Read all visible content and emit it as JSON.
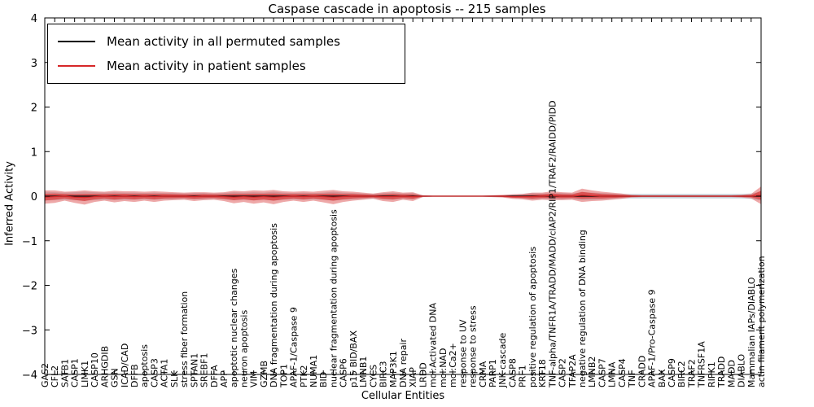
{
  "chart_data": {
    "type": "line",
    "title": "Caspase cascade in apoptosis -- 215 samples",
    "xlabel": "Cellular Entities",
    "ylabel": "Inferred Activity",
    "ylim": [
      -4,
      4
    ],
    "yticks": [
      -4,
      -3,
      -2,
      -1,
      0,
      1,
      2,
      3,
      4
    ],
    "grid": false,
    "legend_position": "upper left",
    "categories": [
      "GAS2",
      "CFL2",
      "SATB1",
      "CASP1",
      "LIMK1",
      "CASP10",
      "ARHGDIB",
      "GSN",
      "ICAD/CAD",
      "DFFB",
      "apoptosis",
      "CASP3",
      "ACTA1",
      "SLK",
      "stress fiber formation",
      "SPTAN1",
      "SREBF1",
      "DFFA",
      "APP",
      "apoptotic nuclear changes",
      "neuron apoptosis",
      "VIM",
      "GZMB",
      "DNA fragmentation during apoptosis",
      "TOP1",
      "APAF-1/Caspase 9",
      "PTK2",
      "NUMA1",
      "BID",
      "nuclear fragmentation during apoptosis",
      "CASP6",
      "p15 BID/BAX",
      "LMNB1",
      "CYCS",
      "BIRC3",
      "MAP3K1",
      "DNA repair",
      "XIAP",
      "LRDD",
      "mol:Activated DNA",
      "mol:NAD",
      "mol:Ca2+",
      "response to UV",
      "response to stress",
      "CRMA",
      "PARP1",
      "JNK cascade",
      "CASP8",
      "PRF1",
      "positive regulation of apoptosis",
      "KRT18",
      "TNF-alpha/TNFR1A/TRADD/MADD/cIAP2/RIP1/TRAF2/RAIDD/PIDD",
      "CASP2",
      "TFAP2A",
      "negative regulation of DNA binding",
      "LMNB2",
      "CASP7",
      "LMNA",
      "CASP4",
      "TNF",
      "CRADD",
      "APAF-1/Pro-Caspase 9",
      "BAX",
      "CASP9",
      "BIRC2",
      "TRAF2",
      "TNFRSF1A",
      "RIPK1",
      "TRADD",
      "MADD",
      "DIABLO",
      "Mammalian IAPs/DIABLO",
      "actin filament polymerization"
    ],
    "series": [
      {
        "name": "Mean activity in all permuted samples",
        "color": "#000000",
        "band_color": "#b9c7d2",
        "mean": [
          0,
          0,
          0,
          0,
          0,
          0,
          0,
          0,
          0,
          0,
          0,
          0,
          0,
          0,
          0,
          0,
          0,
          0,
          0,
          0,
          0,
          0,
          0,
          0,
          0,
          0,
          0,
          0,
          0,
          0,
          0,
          0,
          0,
          0,
          0,
          0,
          0,
          0,
          0,
          0,
          0,
          0,
          0,
          0,
          0,
          0,
          0,
          0,
          0,
          0,
          0,
          0,
          0,
          0,
          0,
          0,
          0,
          0,
          0,
          0,
          0,
          0,
          0,
          0,
          0,
          0,
          0,
          0,
          0,
          0,
          0,
          0,
          0
        ],
        "band": [
          0.1,
          0.09,
          0.08,
          0.09,
          0.1,
          0.09,
          0.08,
          0.09,
          0.08,
          0.08,
          0.07,
          0.08,
          0.07,
          0.07,
          0.06,
          0.07,
          0.07,
          0.06,
          0.07,
          0.09,
          0.08,
          0.09,
          0.08,
          0.1,
          0.08,
          0.07,
          0.08,
          0.07,
          0.08,
          0.1,
          0.08,
          0.07,
          0.06,
          0.05,
          0.07,
          0.08,
          0.06,
          0.07,
          0.02,
          0.01,
          0.01,
          0.01,
          0.01,
          0.01,
          0.01,
          0.02,
          0.02,
          0.04,
          0.05,
          0.07,
          0.06,
          0.07,
          0.07,
          0.06,
          0.09,
          0.08,
          0.07,
          0.06,
          0.05,
          0.05,
          0.05,
          0.05,
          0.05,
          0.05,
          0.05,
          0.05,
          0.05,
          0.05,
          0.05,
          0.05,
          0.05,
          0.06,
          0.1
        ]
      },
      {
        "name": "Mean activity in patient samples",
        "color": "#d62728",
        "band_color": "#e06060",
        "mean": [
          -0.02,
          -0.01,
          0.0,
          -0.02,
          -0.03,
          -0.01,
          0.0,
          -0.01,
          0.0,
          -0.01,
          0.0,
          -0.01,
          0.0,
          0.0,
          0.0,
          -0.01,
          0.0,
          0.0,
          -0.01,
          -0.02,
          -0.01,
          -0.02,
          -0.01,
          -0.02,
          -0.01,
          0.0,
          -0.01,
          0.0,
          -0.01,
          -0.02,
          -0.01,
          0.0,
          0.0,
          0.0,
          -0.01,
          -0.01,
          0.0,
          -0.01,
          0.0,
          0.0,
          0.0,
          0.0,
          0.0,
          0.0,
          0.0,
          0.0,
          0.0,
          -0.01,
          -0.01,
          -0.01,
          0.0,
          0.01,
          0.0,
          0.0,
          0.02,
          0.01,
          0.0,
          0.0,
          0.0,
          0.0,
          0.0,
          0.0,
          0.0,
          0.0,
          0.0,
          0.0,
          0.0,
          0.0,
          0.0,
          0.0,
          0.0,
          0.0,
          0.02
        ],
        "band": [
          0.15,
          0.14,
          0.1,
          0.13,
          0.16,
          0.12,
          0.1,
          0.13,
          0.11,
          0.12,
          0.1,
          0.12,
          0.1,
          0.09,
          0.08,
          0.1,
          0.09,
          0.08,
          0.1,
          0.14,
          0.12,
          0.15,
          0.13,
          0.16,
          0.12,
          0.1,
          0.12,
          0.1,
          0.13,
          0.16,
          0.12,
          0.1,
          0.08,
          0.06,
          0.1,
          0.12,
          0.08,
          0.1,
          0.02,
          0.01,
          0.01,
          0.01,
          0.01,
          0.01,
          0.01,
          0.02,
          0.03,
          0.05,
          0.06,
          0.09,
          0.08,
          0.1,
          0.09,
          0.08,
          0.15,
          0.12,
          0.1,
          0.08,
          0.06,
          0.03,
          0.02,
          0.02,
          0.02,
          0.02,
          0.02,
          0.02,
          0.02,
          0.02,
          0.02,
          0.02,
          0.03,
          0.05,
          0.2
        ]
      }
    ]
  }
}
